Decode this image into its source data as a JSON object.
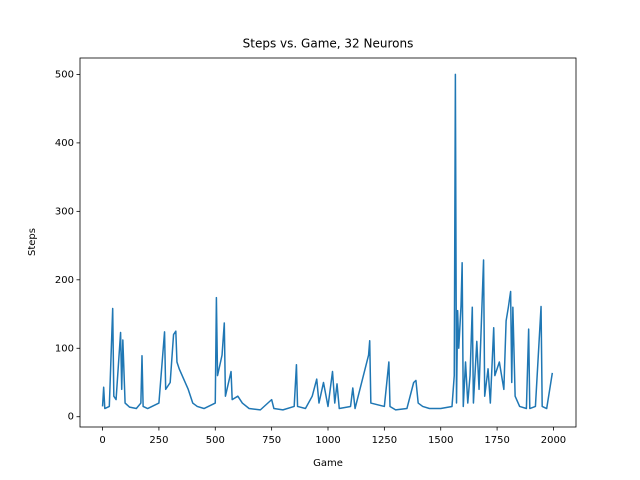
{
  "chart_data": {
    "type": "line",
    "title": "Steps vs. Game, 32 Neurons",
    "x_label": "Game",
    "y_label": "Steps",
    "x": [
      0,
      5,
      10,
      30,
      45,
      50,
      60,
      80,
      85,
      90,
      100,
      120,
      150,
      170,
      175,
      180,
      200,
      250,
      275,
      280,
      300,
      315,
      325,
      330,
      340,
      360,
      380,
      400,
      420,
      450,
      500,
      505,
      510,
      530,
      540,
      545,
      570,
      575,
      600,
      620,
      650,
      700,
      750,
      760,
      800,
      850,
      860,
      865,
      900,
      930,
      950,
      960,
      980,
      1000,
      1020,
      1030,
      1040,
      1050,
      1100,
      1110,
      1120,
      1180,
      1185,
      1190,
      1250,
      1270,
      1275,
      1300,
      1350,
      1380,
      1390,
      1400,
      1420,
      1450,
      1500,
      1550,
      1560,
      1565,
      1570,
      1575,
      1580,
      1590,
      1595,
      1600,
      1610,
      1620,
      1630,
      1640,
      1645,
      1660,
      1670,
      1690,
      1695,
      1710,
      1720,
      1735,
      1740,
      1760,
      1780,
      1790,
      1800,
      1810,
      1815,
      1820,
      1830,
      1850,
      1880,
      1890,
      1895,
      1920,
      1945,
      1950,
      1970,
      1995
    ],
    "series": [
      {
        "name": "Steps",
        "color": "#1f77b4",
        "values": [
          15,
          43,
          12,
          15,
          158,
          30,
          25,
          123,
          40,
          112,
          20,
          14,
          12,
          20,
          89,
          15,
          12,
          20,
          124,
          40,
          50,
          120,
          125,
          80,
          70,
          55,
          40,
          20,
          15,
          12,
          20,
          174,
          60,
          90,
          137,
          30,
          66,
          25,
          30,
          20,
          12,
          10,
          25,
          12,
          10,
          15,
          76,
          15,
          12,
          30,
          55,
          20,
          50,
          15,
          66,
          20,
          48,
          12,
          15,
          42,
          12,
          90,
          111,
          20,
          15,
          80,
          15,
          10,
          12,
          50,
          53,
          20,
          15,
          12,
          12,
          15,
          60,
          500,
          20,
          155,
          100,
          162,
          225,
          15,
          80,
          20,
          60,
          160,
          20,
          110,
          40,
          229,
          30,
          70,
          20,
          130,
          60,
          80,
          40,
          140,
          160,
          183,
          50,
          160,
          30,
          15,
          12,
          128,
          12,
          15,
          161,
          15,
          12,
          64
        ]
      }
    ],
    "xlim": [
      -100,
      2100
    ],
    "ylim": [
      -15,
      524
    ],
    "xticks": [
      0,
      250,
      500,
      750,
      1000,
      1250,
      1500,
      1750,
      2000
    ],
    "yticks": [
      0,
      100,
      200,
      300,
      400,
      500
    ]
  }
}
